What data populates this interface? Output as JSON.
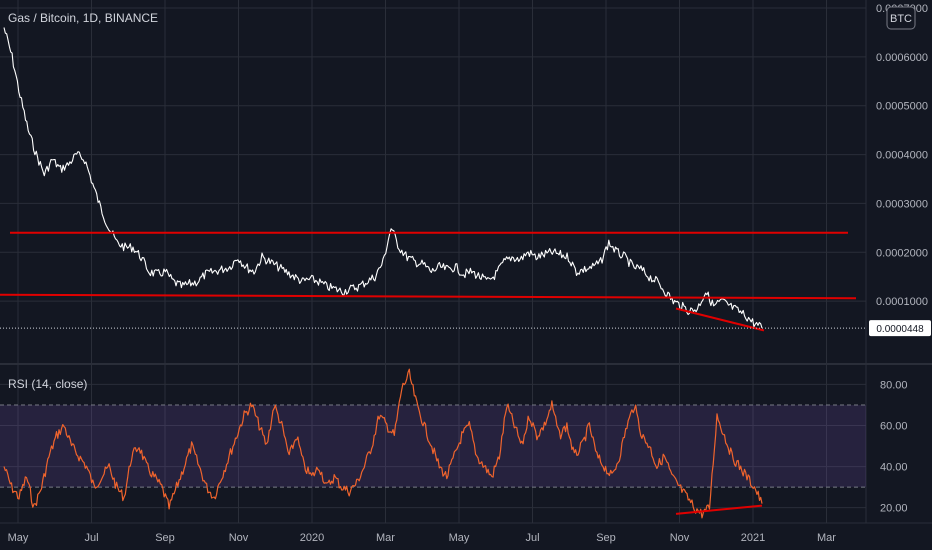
{
  "chart_data": [
    {
      "type": "line",
      "panel": "price",
      "title": "Gas / Bitcoin, 1D, BINANCE",
      "currency_badge": "BTC",
      "ylim": [
        0.0,
        0.0007
      ],
      "y_ticks": [
        "0.0007000",
        "0.0006000",
        "0.0005000",
        "0.0004000",
        "0.0003000",
        "0.0002000",
        "0.0001000"
      ],
      "last_price_label": "0.0000448",
      "x_ticks": [
        "May",
        "Jul",
        "Sep",
        "Nov",
        "2020",
        "Mar",
        "May",
        "Jul",
        "Sep",
        "Nov",
        "2021",
        "Mar"
      ],
      "series": [
        {
          "values": [
            0.00066,
            0.0006,
            0.00052,
            0.00045,
            0.0004,
            0.00036,
            0.00039,
            0.00037,
            0.00038,
            0.0004,
            0.00039,
            0.00034,
            0.00029,
            0.00025,
            0.00022,
            0.00021,
            0.00021,
            0.00019,
            0.00016,
            0.000155,
            0.00016,
            0.00014,
            0.00013,
            0.000135,
            0.00014,
            0.000155,
            0.00016,
            0.000165,
            0.00017,
            0.00019,
            0.00017,
            0.00016,
            0.00019,
            0.00018,
            0.00017,
            0.00016,
            0.00015,
            0.00014,
            0.000145,
            0.00014,
            0.00013,
            0.000125,
            0.00012,
            0.000125,
            0.00013,
            0.00014,
            0.00015,
            0.00018,
            0.00025,
            0.00021,
            0.00019,
            0.00018,
            0.000175,
            0.00016,
            0.00017,
            0.000165,
            0.00017,
            0.000155,
            0.00016,
            0.00015,
            0.00014,
            0.000155,
            0.00018,
            0.00019,
            0.000185,
            0.0002,
            0.00019,
            0.000195,
            0.0002,
            0.000195,
            0.00019,
            0.00016,
            0.000165,
            0.00017,
            0.00018,
            0.00022,
            0.0002,
            0.00019,
            0.00017,
            0.000165,
            0.00015,
            0.00014,
            0.00012,
            0.0001,
            9e-05,
            8e-05,
            8.5e-05,
            0.00012,
            9e-05,
            0.0001,
            9e-05,
            8e-05,
            7e-05,
            5.5e-05,
            4.5e-05
          ]
        }
      ],
      "annotations": [
        {
          "type": "horizontal-line",
          "y": 0.00024,
          "color": "#e00000"
        },
        {
          "type": "trend-line",
          "points": [
            [
              "start",
              0.000113
            ],
            [
              "end",
              0.000106
            ]
          ],
          "color": "#e00000"
        },
        {
          "type": "trend-line",
          "points": [
            [
              "Nov 2020",
              8.5e-05
            ],
            [
              "Dec 2020",
              4e-05
            ]
          ],
          "color": "#e00000"
        }
      ],
      "colors": {
        "background": "#131722",
        "line": "#ffffff",
        "drawing": "#e00000",
        "grid": "#2a2e39"
      }
    },
    {
      "type": "line",
      "panel": "indicator",
      "title": "RSI (14, close)",
      "ylim": [
        14,
        88
      ],
      "y_ticks": [
        "80.00",
        "60.00",
        "40.00",
        "20.00"
      ],
      "band": [
        30,
        70
      ],
      "series": [
        {
          "name": "RSI",
          "values": [
            40,
            30,
            25,
            35,
            20,
            30,
            45,
            55,
            60,
            50,
            45,
            40,
            30,
            35,
            40,
            30,
            25,
            45,
            50,
            40,
            35,
            30,
            20,
            30,
            40,
            50,
            40,
            30,
            25,
            35,
            45,
            55,
            65,
            70,
            60,
            50,
            70,
            60,
            45,
            55,
            40,
            35,
            40,
            30,
            35,
            30,
            28,
            32,
            40,
            50,
            65,
            60,
            55,
            78,
            85,
            70,
            60,
            50,
            40,
            35,
            45,
            55,
            60,
            45,
            40,
            35,
            45,
            70,
            60,
            50,
            65,
            55,
            60,
            70,
            55,
            60,
            45,
            50,
            60,
            45,
            40,
            35,
            45,
            60,
            70,
            55,
            50,
            40,
            45,
            35,
            30,
            25,
            20,
            17,
            20,
            65,
            55,
            45,
            40,
            35,
            30,
            22
          ],
          "color": "#f0642d"
        }
      ],
      "annotations": [
        {
          "type": "trend-line",
          "points": [
            [
              "Nov 2020",
              17
            ],
            [
              "Jan 2021",
              21
            ]
          ],
          "color": "#e00000"
        }
      ],
      "colors": {
        "band_fill": "#7e57c2",
        "line": "#f0642d"
      }
    }
  ]
}
